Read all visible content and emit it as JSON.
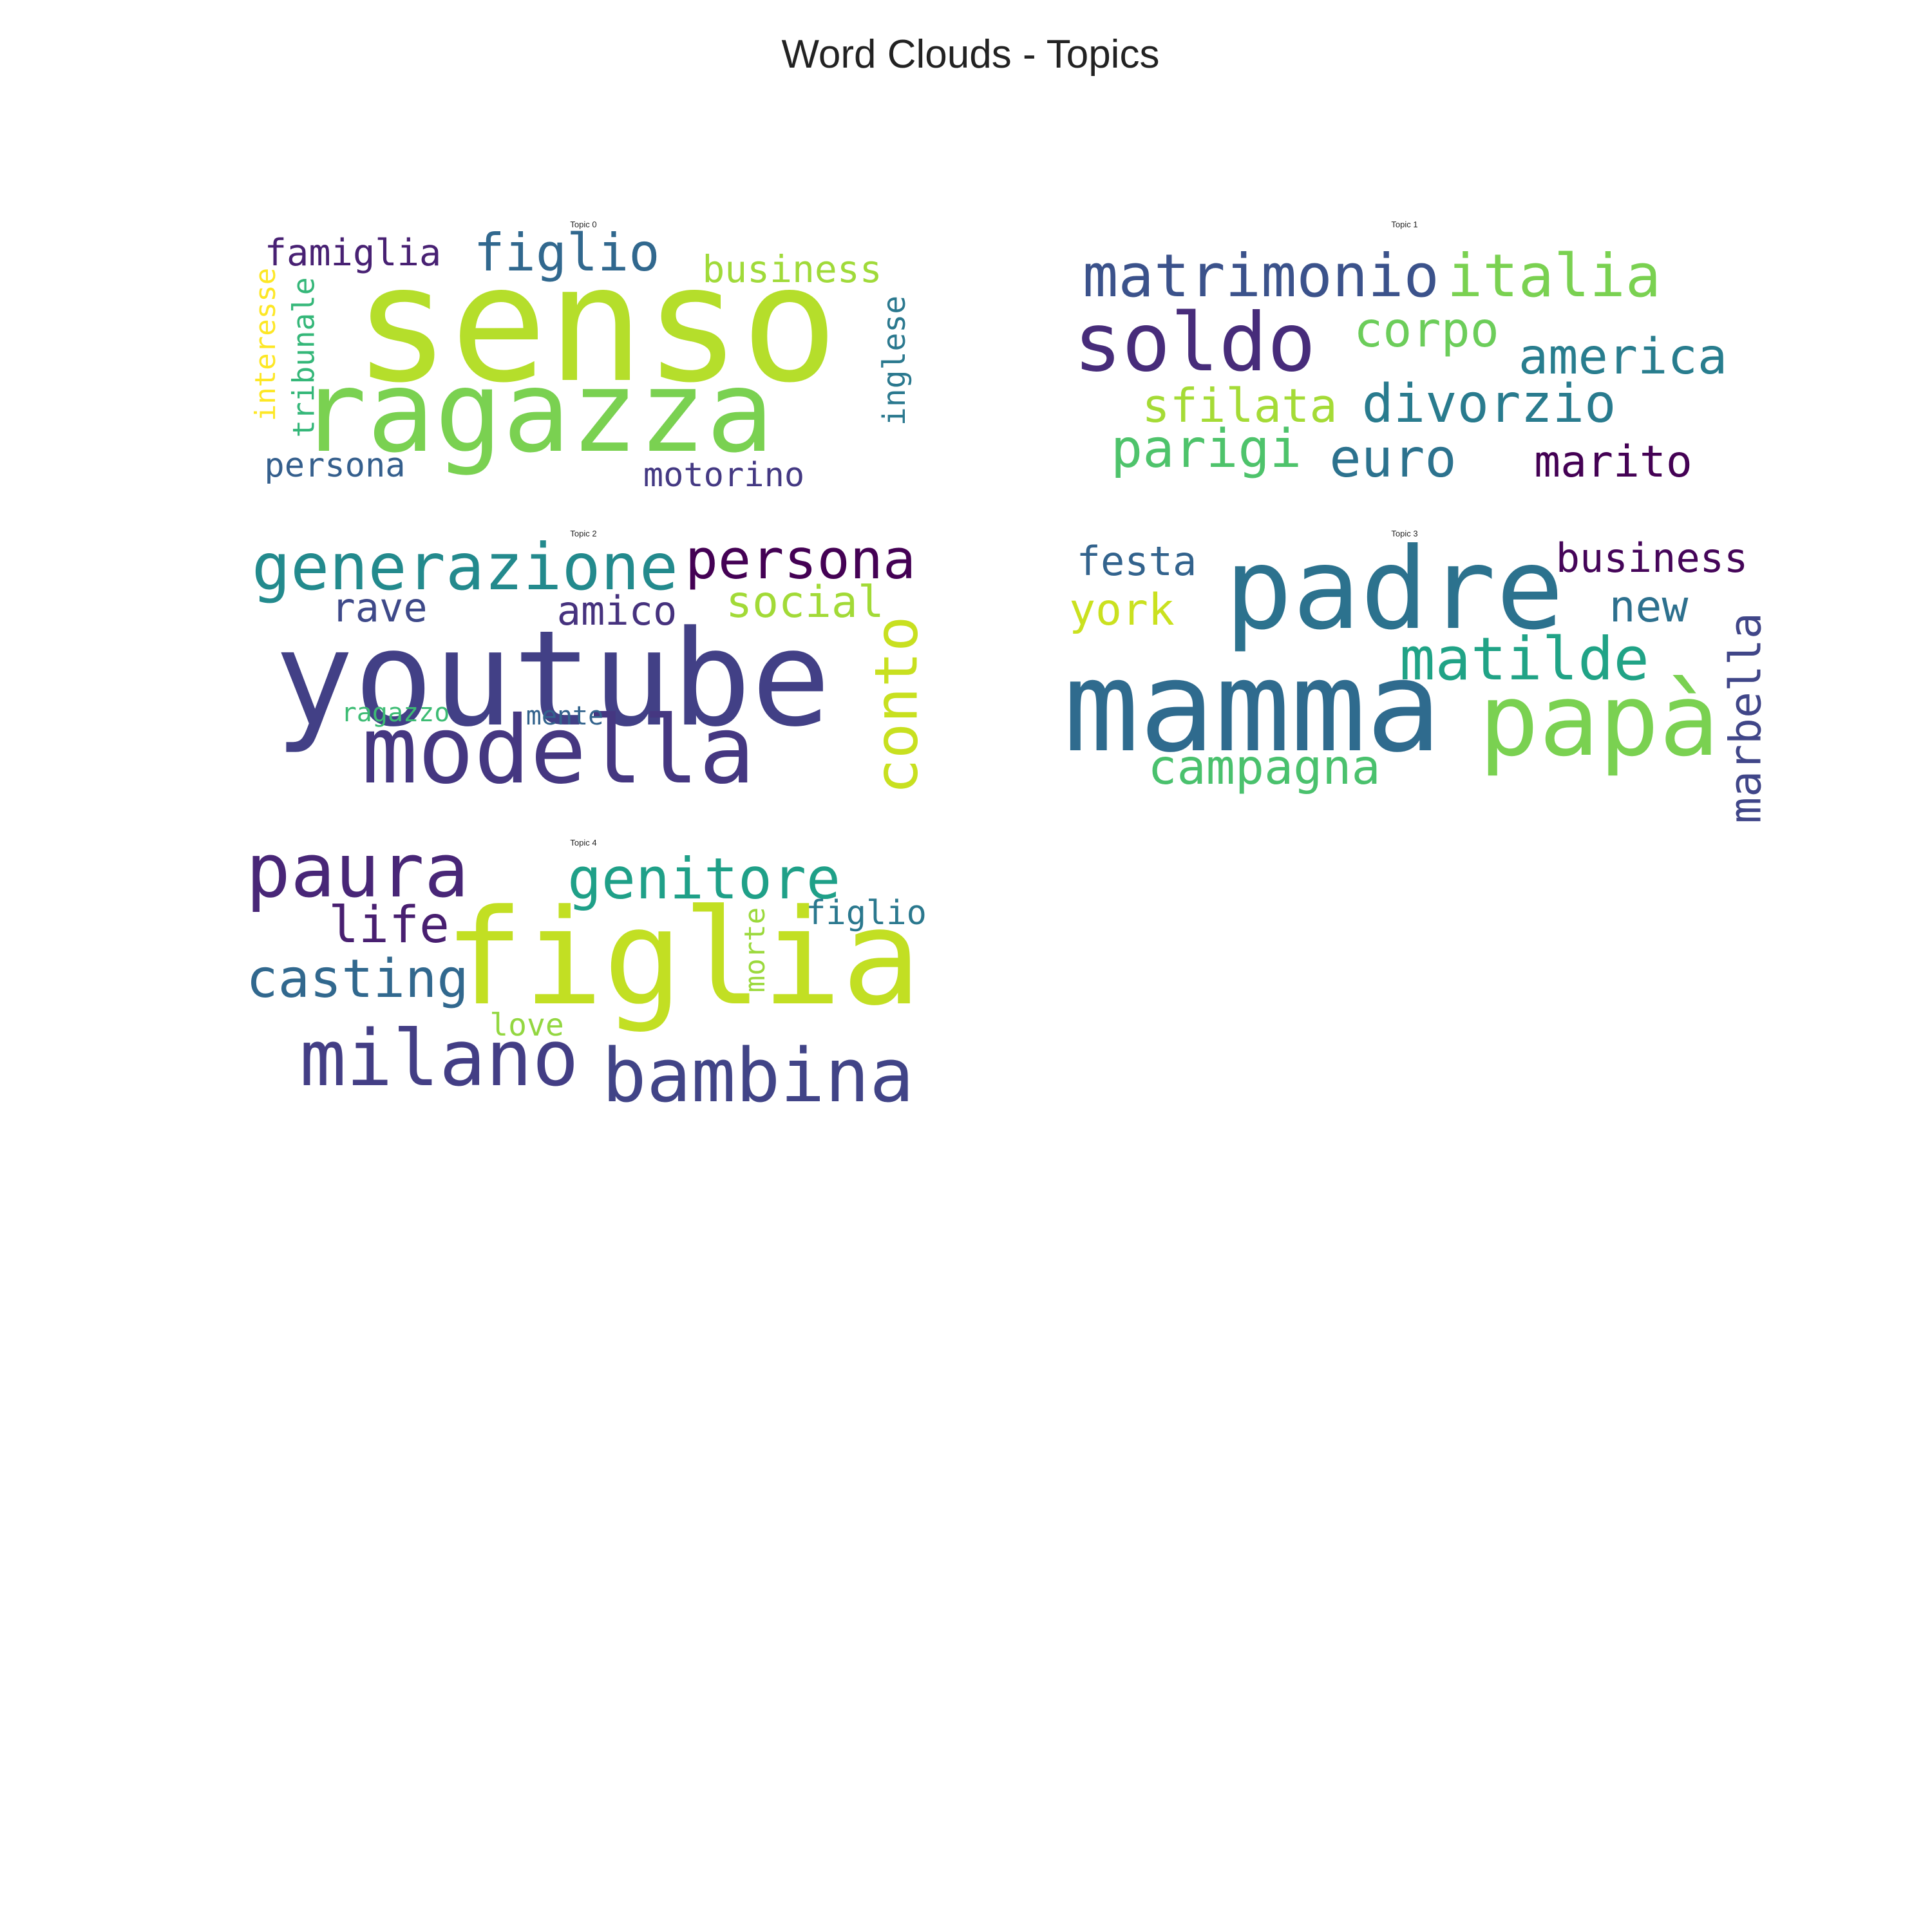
{
  "title": "Word Clouds - Topics",
  "chart_data": [
    {
      "type": "wordcloud",
      "title": "Topic 0",
      "words": [
        {
          "text": "senso",
          "color": "#b5de2b"
        },
        {
          "text": "ragazza",
          "color": "#7ad151"
        },
        {
          "text": "figlio",
          "color": "#31688e"
        },
        {
          "text": "famiglia",
          "color": "#482173"
        },
        {
          "text": "business",
          "color": "#a0da39"
        },
        {
          "text": "interesse",
          "color": "#fde725"
        },
        {
          "text": "tribunale",
          "color": "#35b779"
        },
        {
          "text": "inglese",
          "color": "#2a788e"
        },
        {
          "text": "persona",
          "color": "#355f8d"
        },
        {
          "text": "motorino",
          "color": "#443983"
        }
      ]
    },
    {
      "type": "wordcloud",
      "title": "Topic 1",
      "words": [
        {
          "text": "matrimonio",
          "color": "#3b528b"
        },
        {
          "text": "italia",
          "color": "#7ad151"
        },
        {
          "text": "soldo",
          "color": "#472c7a"
        },
        {
          "text": "corpo",
          "color": "#6ccd5a"
        },
        {
          "text": "america",
          "color": "#287d8e"
        },
        {
          "text": "sfilata",
          "color": "#a5db36"
        },
        {
          "text": "divorzio",
          "color": "#297b8e"
        },
        {
          "text": "parigi",
          "color": "#4ec36b"
        },
        {
          "text": "euro",
          "color": "#2c728e"
        },
        {
          "text": "marito",
          "color": "#440154"
        }
      ]
    },
    {
      "type": "wordcloud",
      "title": "Topic 2",
      "words": [
        {
          "text": "generazione",
          "color": "#238a8d"
        },
        {
          "text": "persona",
          "color": "#440154"
        },
        {
          "text": "rave",
          "color": "#3e4989"
        },
        {
          "text": "amico",
          "color": "#46327e"
        },
        {
          "text": "social",
          "color": "#a2da37"
        },
        {
          "text": "youtube",
          "color": "#424086"
        },
        {
          "text": "conto",
          "color": "#c8e020"
        },
        {
          "text": "modella",
          "color": "#453781"
        },
        {
          "text": "ragazzo",
          "color": "#3dbc74"
        },
        {
          "text": "mente",
          "color": "#33638d"
        }
      ]
    },
    {
      "type": "wordcloud",
      "title": "Topic 3",
      "words": [
        {
          "text": "festa",
          "color": "#33638d"
        },
        {
          "text": "padre",
          "color": "#2c728e"
        },
        {
          "text": "business",
          "color": "#450559"
        },
        {
          "text": "york",
          "color": "#cae11f"
        },
        {
          "text": "new",
          "color": "#2d708e"
        },
        {
          "text": "matilde",
          "color": "#20a386"
        },
        {
          "text": "mamma",
          "color": "#2f6b8e"
        },
        {
          "text": "papà",
          "color": "#7ad151"
        },
        {
          "text": "marbella",
          "color": "#404688"
        },
        {
          "text": "campagna",
          "color": "#4ac16d"
        }
      ]
    },
    {
      "type": "wordcloud",
      "title": "Topic 4",
      "words": [
        {
          "text": "paura",
          "color": "#482677"
        },
        {
          "text": "genitore",
          "color": "#1fa088"
        },
        {
          "text": "life",
          "color": "#481f70"
        },
        {
          "text": "figlio",
          "color": "#2a788e"
        },
        {
          "text": "figlia",
          "color": "#c2df23"
        },
        {
          "text": "casting",
          "color": "#31688e"
        },
        {
          "text": "morte",
          "color": "#9bd93c"
        },
        {
          "text": "love",
          "color": "#93d741"
        },
        {
          "text": "milano",
          "color": "#433e85"
        },
        {
          "text": "bambina",
          "color": "#414487"
        }
      ]
    }
  ]
}
